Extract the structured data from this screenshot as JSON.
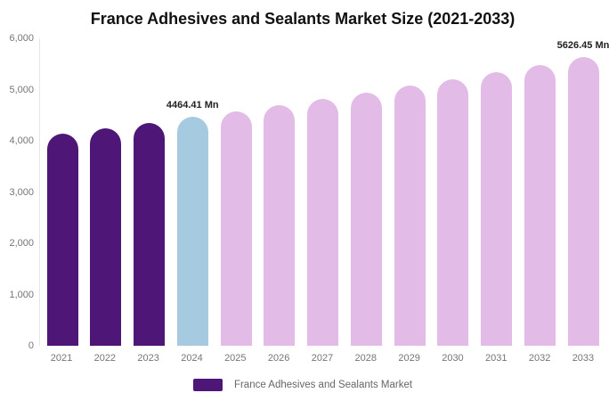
{
  "chart_data": {
    "type": "bar",
    "title": "France Adhesives and Sealants Market Size (2021-2033)",
    "unit": "Mn",
    "xlabel": "",
    "ylabel": "",
    "ylim": [
      0,
      6000
    ],
    "grid": false,
    "legend_position": "bottom",
    "categories": [
      "2021",
      "2022",
      "2023",
      "2024",
      "2025",
      "2026",
      "2027",
      "2028",
      "2029",
      "2030",
      "2031",
      "2032",
      "2033"
    ],
    "values": [
      4132,
      4240,
      4350,
      4464.41,
      4580,
      4700,
      4822,
      4947,
      5076,
      5208,
      5344,
      5483,
      5626.45
    ],
    "data_labels": {
      "2024": "4464.41 Mn",
      "2033": "5626.45 Mn"
    },
    "y_ticks": [
      {
        "value": 0,
        "label": "0"
      },
      {
        "value": 1000,
        "label": "1,000"
      },
      {
        "value": 2000,
        "label": "2,000"
      },
      {
        "value": 3000,
        "label": "3,000"
      },
      {
        "value": 4000,
        "label": "4,000"
      },
      {
        "value": 5000,
        "label": "5,000"
      },
      {
        "value": 6000,
        "label": "6,000"
      }
    ],
    "bar_colors": [
      "#4D1677",
      "#4D1677",
      "#4D1677",
      "#A6CADF",
      "#E2BCE6",
      "#E2BCE6",
      "#E2BCE6",
      "#E2BCE6",
      "#E2BCE6",
      "#E2BCE6",
      "#E2BCE6",
      "#E2BCE6",
      "#E2BCE6"
    ],
    "colors": {
      "historical": "#4D1677",
      "highlight_year": "#A6CADF",
      "forecast": "#E2BCE6",
      "axis_text": "#757575",
      "title_text": "#111111",
      "data_label_text": "#222222",
      "axis_line": "#e6e6e6"
    },
    "legend": [
      {
        "label": "France Adhesives and Sealants Market",
        "color": "#4D1677"
      }
    ]
  }
}
